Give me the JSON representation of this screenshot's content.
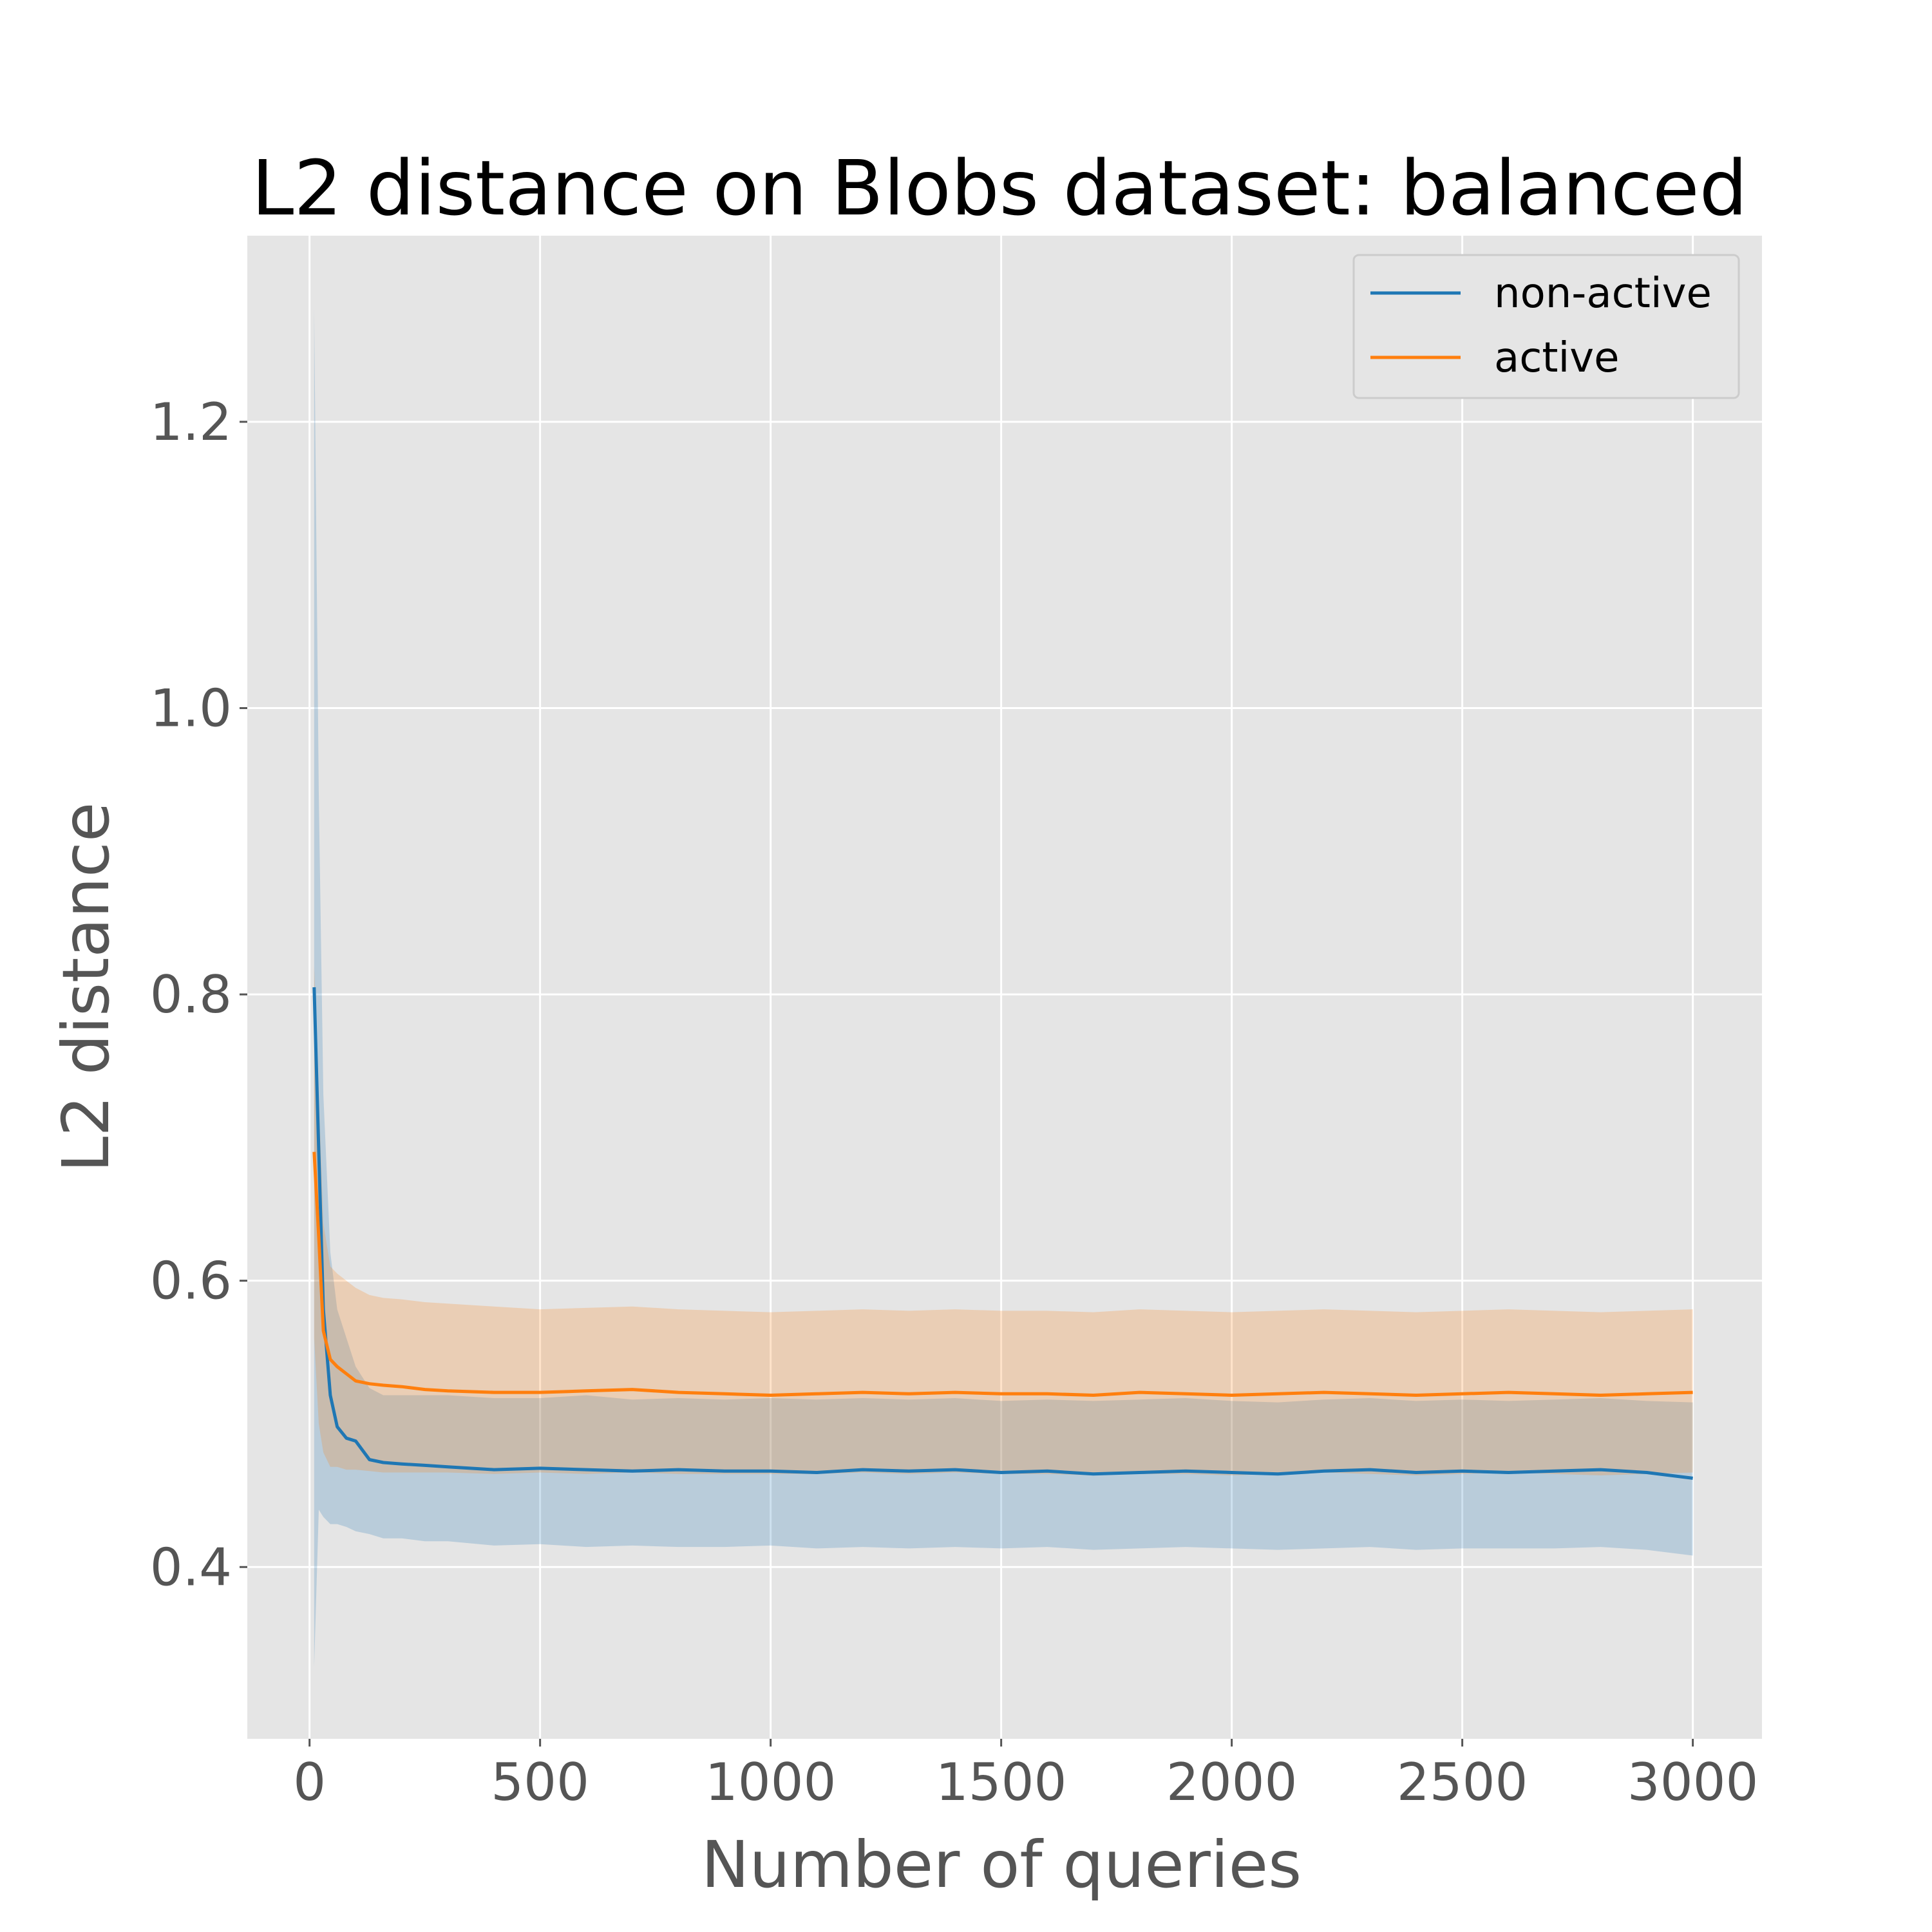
{
  "chart_data": {
    "type": "line",
    "title": "L2 distance on Blobs dataset: balanced",
    "xlabel": "Number of queries",
    "ylabel": "L2 distance",
    "xlim": [
      -135,
      3150
    ],
    "ylim": [
      0.28,
      1.33
    ],
    "xticks": [
      0,
      500,
      1000,
      1500,
      2000,
      2500,
      3000
    ],
    "yticks": [
      0.4,
      0.6,
      0.8,
      1.0,
      1.2
    ],
    "xtick_labels": [
      "0",
      "500",
      "1000",
      "1500",
      "2000",
      "2500",
      "3000"
    ],
    "ytick_labels": [
      "0.4",
      "0.6",
      "0.8",
      "1.0",
      "1.2"
    ],
    "grid": true,
    "style": "ggplot",
    "legend_position": "top-right",
    "background": "#e5e5e5",
    "series": [
      {
        "name": "non-active",
        "color": "#1f77b4",
        "x": [
          10,
          20,
          30,
          45,
          60,
          80,
          100,
          130,
          160,
          200,
          250,
          300,
          400,
          500,
          600,
          700,
          800,
          900,
          1000,
          1100,
          1200,
          1300,
          1400,
          1500,
          1600,
          1700,
          1800,
          1900,
          2000,
          2100,
          2200,
          2300,
          2400,
          2500,
          2600,
          2700,
          2800,
          2900,
          3000
        ],
        "y": [
          0.805,
          0.69,
          0.58,
          0.52,
          0.498,
          0.49,
          0.488,
          0.475,
          0.473,
          0.472,
          0.471,
          0.47,
          0.468,
          0.469,
          0.468,
          0.467,
          0.468,
          0.467,
          0.467,
          0.466,
          0.468,
          0.467,
          0.468,
          0.466,
          0.467,
          0.465,
          0.466,
          0.467,
          0.466,
          0.465,
          0.467,
          0.468,
          0.466,
          0.467,
          0.466,
          0.467,
          0.468,
          0.466,
          0.462
        ],
        "lower": [
          0.33,
          0.44,
          0.435,
          0.43,
          0.43,
          0.428,
          0.425,
          0.423,
          0.42,
          0.42,
          0.418,
          0.418,
          0.415,
          0.416,
          0.414,
          0.415,
          0.414,
          0.414,
          0.415,
          0.413,
          0.414,
          0.413,
          0.414,
          0.413,
          0.414,
          0.412,
          0.413,
          0.414,
          0.413,
          0.412,
          0.413,
          0.414,
          0.412,
          0.413,
          0.413,
          0.413,
          0.414,
          0.412,
          0.408
        ],
        "upper": [
          1.28,
          0.94,
          0.73,
          0.62,
          0.58,
          0.56,
          0.54,
          0.525,
          0.52,
          0.52,
          0.52,
          0.52,
          0.518,
          0.518,
          0.52,
          0.517,
          0.518,
          0.517,
          0.518,
          0.517,
          0.518,
          0.517,
          0.518,
          0.516,
          0.517,
          0.516,
          0.517,
          0.518,
          0.516,
          0.515,
          0.517,
          0.518,
          0.516,
          0.517,
          0.516,
          0.517,
          0.518,
          0.516,
          0.515
        ]
      },
      {
        "name": "active",
        "color": "#ff7f0e",
        "x": [
          10,
          20,
          30,
          45,
          60,
          80,
          100,
          130,
          160,
          200,
          250,
          300,
          400,
          500,
          600,
          700,
          800,
          900,
          1000,
          1100,
          1200,
          1300,
          1400,
          1500,
          1600,
          1700,
          1800,
          1900,
          2000,
          2100,
          2200,
          2300,
          2400,
          2500,
          2600,
          2700,
          2800,
          2900,
          3000
        ],
        "y": [
          0.69,
          0.63,
          0.565,
          0.545,
          0.54,
          0.535,
          0.53,
          0.528,
          0.527,
          0.526,
          0.524,
          0.523,
          0.522,
          0.522,
          0.523,
          0.524,
          0.522,
          0.521,
          0.52,
          0.521,
          0.522,
          0.521,
          0.522,
          0.521,
          0.521,
          0.52,
          0.522,
          0.521,
          0.52,
          0.521,
          0.522,
          0.521,
          0.52,
          0.521,
          0.522,
          0.521,
          0.52,
          0.521,
          0.522
        ],
        "lower": [
          0.56,
          0.5,
          0.48,
          0.47,
          0.47,
          0.468,
          0.468,
          0.467,
          0.466,
          0.466,
          0.466,
          0.466,
          0.465,
          0.466,
          0.465,
          0.466,
          0.465,
          0.465,
          0.465,
          0.465,
          0.466,
          0.465,
          0.466,
          0.465,
          0.465,
          0.464,
          0.465,
          0.465,
          0.464,
          0.465,
          0.466,
          0.465,
          0.464,
          0.465,
          0.466,
          0.465,
          0.464,
          0.465,
          0.466
        ],
        "upper": [
          0.82,
          0.73,
          0.64,
          0.61,
          0.605,
          0.6,
          0.595,
          0.59,
          0.588,
          0.587,
          0.585,
          0.584,
          0.582,
          0.58,
          0.581,
          0.582,
          0.58,
          0.579,
          0.578,
          0.579,
          0.58,
          0.579,
          0.58,
          0.579,
          0.579,
          0.578,
          0.58,
          0.579,
          0.578,
          0.579,
          0.58,
          0.579,
          0.578,
          0.579,
          0.58,
          0.579,
          0.578,
          0.579,
          0.58
        ]
      }
    ]
  }
}
